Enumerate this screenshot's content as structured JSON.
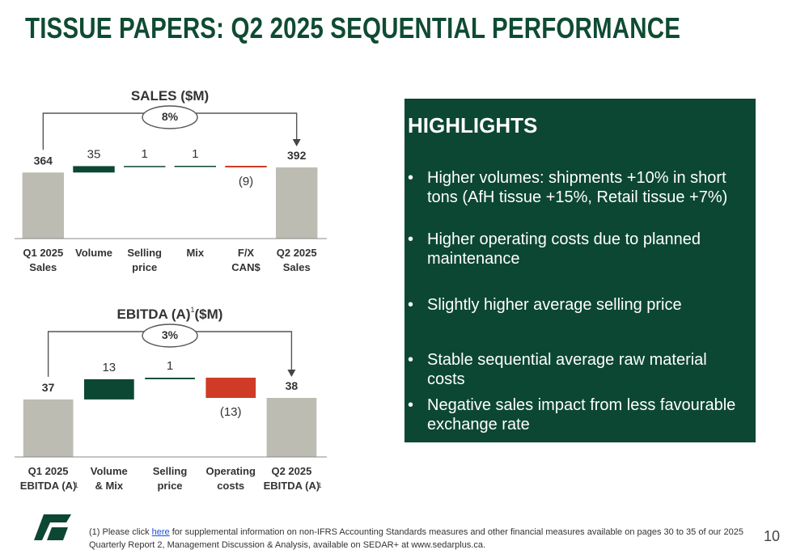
{
  "page": {
    "title": "TISSUE PAPERS: Q2 2025 SEQUENTIAL PERFORMANCE",
    "page_number": "10"
  },
  "colors": {
    "green": "#0c4733",
    "red": "#cf3b26",
    "gray": "#bcbcb3"
  },
  "chart_data": [
    {
      "type": "bar",
      "title": "SALES ($M)",
      "title_superscript": "",
      "change_label": "8%",
      "categories": [
        "Q1 2025\nSales",
        "Volume",
        "Selling\nprice",
        "Mix",
        "F/X\nCAN$",
        "Q2 2025\nSales"
      ],
      "category_notes": [
        "",
        "",
        "",
        "",
        "",
        ""
      ],
      "values": [
        364,
        35,
        1,
        1,
        -9,
        392
      ],
      "value_labels": [
        "364",
        "35",
        "1",
        "1",
        "(9)",
        "392"
      ],
      "measure": [
        "total",
        "relative",
        "relative",
        "relative",
        "relative",
        "total"
      ]
    },
    {
      "type": "bar",
      "title": "EBITDA (A)",
      "title_superscript": "1",
      "title_suffix": "($M)",
      "change_label": "3%",
      "categories": [
        "Q1 2025\nEBITDA (A)",
        "Volume\n& Mix",
        "Selling\nprice",
        "Operating\ncosts",
        "Q2 2025\nEBITDA (A)"
      ],
      "category_notes": [
        "1",
        "",
        "",
        "",
        "1"
      ],
      "values": [
        37,
        13,
        1,
        -13,
        38
      ],
      "value_labels": [
        "37",
        "13",
        "1",
        "(13)",
        "38"
      ],
      "measure": [
        "total",
        "relative",
        "relative",
        "relative",
        "total"
      ]
    }
  ],
  "highlights": {
    "title": "HIGHLIGHTS",
    "bullet": "•",
    "items": [
      "Higher volumes: shipments +10% in short tons (AfH tissue +15%, Retail tissue +7%)",
      "Higher operating costs due to planned maintenance",
      "Slightly higher average selling price",
      "Stable sequential average raw material costs",
      "Negative sales impact from less favourable exchange rate"
    ]
  },
  "footnote": {
    "prefix": "(1) Please click ",
    "link_text": "here",
    "suffix": " for supplemental information on non-IFRS Accounting Standards measures and other financial measures available on pages 30 to 35 of our 2025 Quarterly Report 2, Management Discussion & Analysis, available on SEDAR+ at www.sedarplus.ca."
  }
}
